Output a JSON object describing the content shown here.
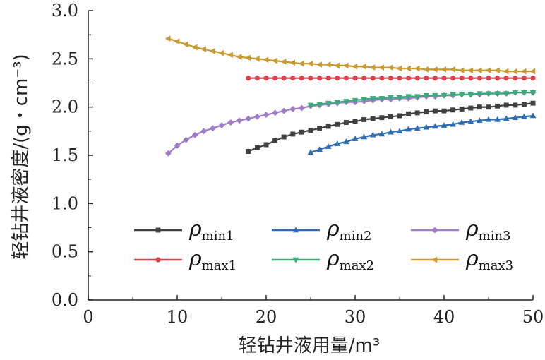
{
  "chart_data": {
    "type": "line",
    "xlabel": "轻钻井液用量/m³",
    "ylabel": "轻钻井液密度/(g・cm⁻³)",
    "xlim": [
      0,
      50
    ],
    "ylim": [
      0.0,
      3.0
    ],
    "xticks": [
      "0",
      "10",
      "20",
      "30",
      "40",
      "50"
    ],
    "yticks": [
      "0.0",
      "0.5",
      "1.0",
      "1.5",
      "2.0",
      "2.5",
      "3.0"
    ],
    "grid": false,
    "legend_placement": "lower-center",
    "series": [
      {
        "name": "ρmin1",
        "symbol": "ρ",
        "subscript": "min1",
        "color": "#404040",
        "marker": "square",
        "x": [
          18,
          19,
          20,
          21,
          22,
          23,
          24,
          25,
          26,
          27,
          28,
          29,
          30,
          31,
          32,
          33,
          34,
          35,
          36,
          37,
          38,
          39,
          40,
          41,
          42,
          43,
          44,
          45,
          46,
          47,
          48,
          49,
          50
        ],
        "y": [
          1.54,
          1.58,
          1.61,
          1.65,
          1.69,
          1.72,
          1.74,
          1.76,
          1.78,
          1.8,
          1.82,
          1.84,
          1.85,
          1.87,
          1.88,
          1.89,
          1.9,
          1.91,
          1.93,
          1.94,
          1.95,
          1.96,
          1.96,
          1.97,
          1.98,
          1.99,
          2.0,
          2.0,
          2.01,
          2.02,
          2.02,
          2.03,
          2.04
        ]
      },
      {
        "name": "ρmin2",
        "symbol": "ρ",
        "subscript": "min2",
        "color": "#2e6db4",
        "marker": "triangle-up",
        "x": [
          25,
          26,
          27,
          28,
          29,
          30,
          31,
          32,
          33,
          34,
          35,
          36,
          37,
          38,
          39,
          40,
          41,
          42,
          43,
          44,
          45,
          46,
          47,
          48,
          49,
          50
        ],
        "y": [
          1.53,
          1.56,
          1.59,
          1.62,
          1.64,
          1.67,
          1.69,
          1.71,
          1.72,
          1.74,
          1.75,
          1.77,
          1.78,
          1.79,
          1.8,
          1.81,
          1.82,
          1.84,
          1.85,
          1.86,
          1.87,
          1.87,
          1.88,
          1.89,
          1.9,
          1.91
        ]
      },
      {
        "name": "ρmin3",
        "symbol": "ρ",
        "subscript": "min3",
        "color": "#a07bc8",
        "marker": "diamond",
        "x": [
          9,
          10,
          11,
          12,
          13,
          14,
          15,
          16,
          17,
          18,
          19,
          20,
          21,
          22,
          23,
          24,
          25,
          26,
          27,
          28,
          29,
          30,
          31,
          32,
          33,
          34,
          35,
          36,
          37,
          38,
          39,
          40,
          41,
          42,
          43,
          44,
          45,
          46,
          47,
          48,
          49,
          50
        ],
        "y": [
          1.52,
          1.6,
          1.66,
          1.71,
          1.75,
          1.78,
          1.81,
          1.84,
          1.86,
          1.88,
          1.9,
          1.92,
          1.94,
          1.96,
          1.98,
          1.99,
          2.01,
          2.02,
          2.03,
          2.04,
          2.05,
          2.05,
          2.06,
          2.07,
          2.08,
          2.08,
          2.09,
          2.09,
          2.1,
          2.11,
          2.11,
          2.12,
          2.12,
          2.13,
          2.13,
          2.13,
          2.14,
          2.14,
          2.14,
          2.15,
          2.15,
          2.15
        ]
      },
      {
        "name": "ρmax1",
        "symbol": "ρ",
        "subscript": "max1",
        "color": "#e0404a",
        "marker": "circle",
        "x": [
          18,
          19,
          20,
          21,
          22,
          23,
          24,
          25,
          26,
          27,
          28,
          29,
          30,
          31,
          32,
          33,
          34,
          35,
          36,
          37,
          38,
          39,
          40,
          41,
          42,
          43,
          44,
          45,
          46,
          47,
          48,
          49,
          50
        ],
        "y": [
          2.3,
          2.3,
          2.3,
          2.3,
          2.3,
          2.3,
          2.3,
          2.3,
          2.3,
          2.3,
          2.3,
          2.3,
          2.3,
          2.3,
          2.3,
          2.3,
          2.3,
          2.3,
          2.3,
          2.3,
          2.3,
          2.3,
          2.3,
          2.3,
          2.3,
          2.3,
          2.3,
          2.3,
          2.3,
          2.3,
          2.3,
          2.3,
          2.3
        ]
      },
      {
        "name": "ρmax2",
        "symbol": "ρ",
        "subscript": "max2",
        "color": "#3aaa78",
        "marker": "triangle-down",
        "x": [
          25,
          26,
          27,
          28,
          29,
          30,
          31,
          32,
          33,
          34,
          35,
          36,
          37,
          38,
          39,
          40,
          41,
          42,
          43,
          44,
          45,
          46,
          47,
          48,
          49,
          50
        ],
        "y": [
          2.02,
          2.03,
          2.04,
          2.05,
          2.06,
          2.07,
          2.08,
          2.09,
          2.09,
          2.1,
          2.1,
          2.11,
          2.11,
          2.12,
          2.12,
          2.12,
          2.13,
          2.13,
          2.13,
          2.14,
          2.14,
          2.14,
          2.14,
          2.15,
          2.15,
          2.15
        ]
      },
      {
        "name": "ρmax3",
        "symbol": "ρ",
        "subscript": "max3",
        "color": "#c89a30",
        "marker": "triangle-left",
        "x": [
          9,
          10,
          11,
          12,
          13,
          14,
          15,
          16,
          17,
          18,
          19,
          20,
          21,
          22,
          23,
          24,
          25,
          26,
          27,
          28,
          29,
          30,
          31,
          32,
          33,
          34,
          35,
          36,
          37,
          38,
          39,
          40,
          41,
          42,
          43,
          44,
          45,
          46,
          47,
          48,
          49,
          50
        ],
        "y": [
          2.71,
          2.68,
          2.65,
          2.62,
          2.6,
          2.58,
          2.56,
          2.54,
          2.52,
          2.51,
          2.5,
          2.49,
          2.48,
          2.47,
          2.46,
          2.45,
          2.45,
          2.44,
          2.44,
          2.43,
          2.43,
          2.42,
          2.42,
          2.41,
          2.41,
          2.41,
          2.4,
          2.4,
          2.4,
          2.39,
          2.39,
          2.39,
          2.39,
          2.38,
          2.38,
          2.38,
          2.38,
          2.38,
          2.37,
          2.37,
          2.37,
          2.37
        ]
      }
    ]
  }
}
